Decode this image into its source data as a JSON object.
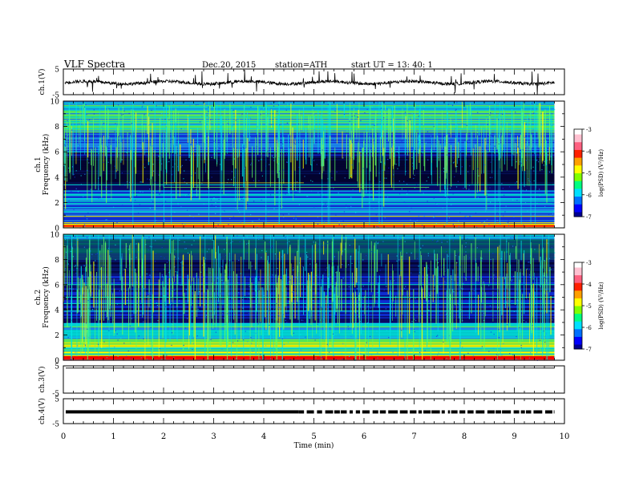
{
  "header": {
    "title": "VLF  Spectra",
    "date": "Dec.20, 2015",
    "station": "station=ATH",
    "start": "start  UT  =    13: 40: 1"
  },
  "colors": {
    "spectrum": [
      "#000000",
      "#0a0a6e",
      "#1030e8",
      "#1e90ff",
      "#00e5e5",
      "#60ff60",
      "#ffff00",
      "#ff9000",
      "#ff0000",
      "#ff9fc0"
    ]
  },
  "chart_data": [
    {
      "type": "line",
      "panel": "ch1-waveform",
      "ylabel": "ch.1(V)",
      "ylim": [
        -5,
        5
      ],
      "yticks": [
        "5",
        "-5"
      ],
      "xlim": [
        0,
        10
      ],
      "baseline": -0.3
    },
    {
      "type": "heatmap",
      "panel": "ch1-spectrogram",
      "ylabel": "Frequency (kHz)",
      "channel_label": "ch.1",
      "ylim": [
        0,
        10
      ],
      "yticks": [
        "0",
        "2",
        "4",
        "6",
        "8",
        "10"
      ],
      "xlim": [
        0,
        10
      ],
      "data_end_min": 9.8,
      "colorbar": {
        "label": "log(PSD) (V²/Hz)",
        "range": [
          -7,
          -3
        ],
        "ticks": [
          "-3",
          "-4",
          "-5",
          "-6",
          "-7"
        ]
      }
    },
    {
      "type": "heatmap",
      "panel": "ch2-spectrogram",
      "ylabel": "Frequency (kHz)",
      "channel_label": "ch.2",
      "ylim": [
        0,
        10
      ],
      "yticks": [
        "0",
        "2",
        "4",
        "6",
        "8",
        "10"
      ],
      "xlim": [
        0,
        10
      ],
      "data_end_min": 9.8,
      "colorbar": {
        "label": "log(PSD) (V²/Hz)",
        "range": [
          -7,
          -3
        ],
        "ticks": [
          "-3",
          "-4",
          "-5",
          "-6",
          "-7"
        ]
      }
    },
    {
      "type": "line",
      "panel": "ch3-waveform",
      "ylabel": "ch.3(V)",
      "ylim": [
        -5,
        5
      ],
      "yticks": [
        "5",
        "-5"
      ],
      "xlim": [
        0,
        10
      ],
      "baseline": 4.2
    },
    {
      "type": "line",
      "panel": "ch4-waveform",
      "ylabel": "ch.4(V)",
      "ylim": [
        -5,
        5
      ],
      "yticks": [
        "5",
        "-5"
      ],
      "xlim": [
        0,
        10
      ],
      "baseline": -0.3
    }
  ],
  "xaxis": {
    "label": "Time  (min)",
    "ticks": [
      "0",
      "1",
      "2",
      "3",
      "4",
      "5",
      "6",
      "7",
      "8",
      "9",
      "10"
    ]
  }
}
